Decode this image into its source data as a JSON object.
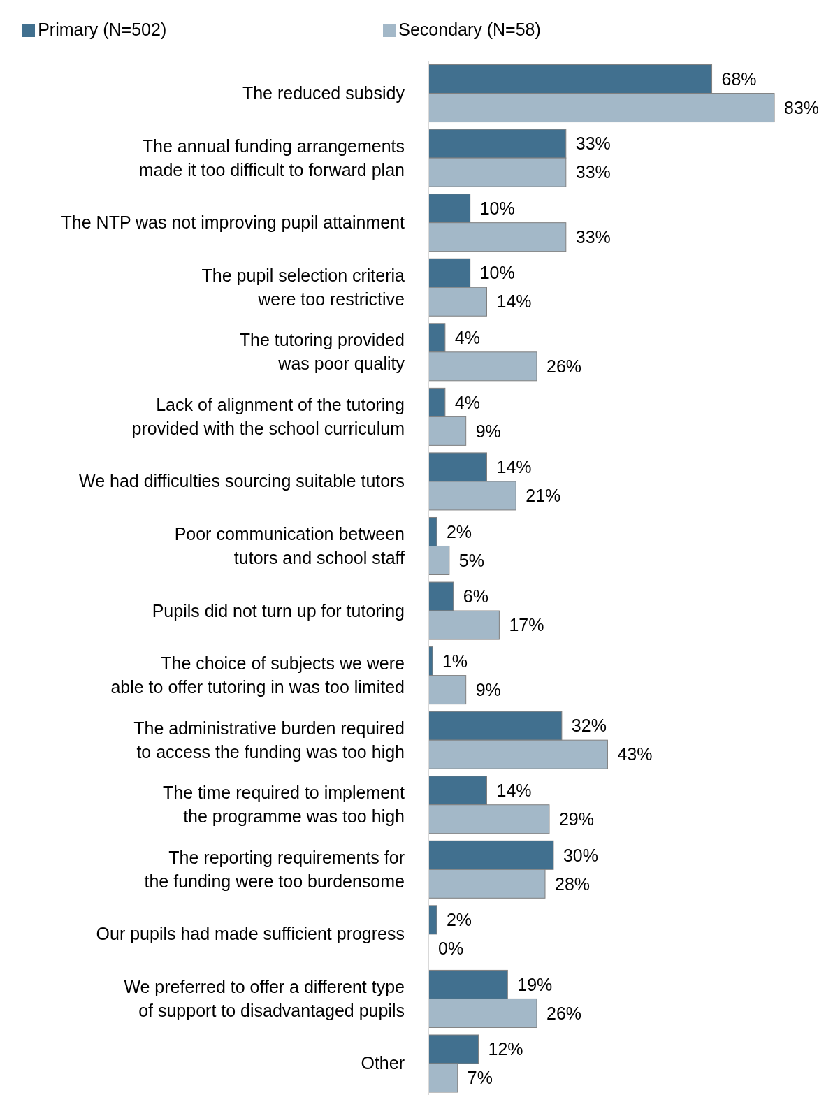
{
  "chart_data": {
    "type": "bar",
    "orientation": "horizontal",
    "legend": "top",
    "categories": [
      "The reduced subsidy",
      "The annual funding arrangements\nmade it too difficult to forward plan",
      "The NTP was not improving pupil attainment",
      "The pupil selection criteria\nwere too restrictive",
      "The tutoring provided\nwas poor quality",
      "Lack of alignment of the tutoring\nprovided with the school curriculum",
      "We had difficulties sourcing suitable tutors",
      "Poor communication between\ntutors and school staff",
      "Pupils did not turn up for tutoring",
      "The choice of subjects we were\nable to offer tutoring in was too limited",
      "The administrative burden required\nto access the funding was too high",
      "The time required to implement\nthe programme was too high",
      "The reporting requirements for\nthe funding were too burdensome",
      "Our pupils had made sufficient progress",
      "We preferred to offer a different type\nof support to disadvantaged pupils",
      "Other"
    ],
    "series": [
      {
        "name": "Primary (N=502)",
        "color": "#41708f",
        "values": [
          68,
          33,
          10,
          10,
          4,
          4,
          14,
          2,
          6,
          1,
          32,
          14,
          30,
          2,
          19,
          12
        ],
        "value_labels": [
          "68%",
          "33%",
          "10%",
          "10%",
          "4%",
          "4%",
          "14%",
          "2%",
          "6%",
          "1%",
          "32%",
          "14%",
          "30%",
          "2%",
          "19%",
          "12%"
        ]
      },
      {
        "name": "Secondary (N=58)",
        "color": "#a3b8c8",
        "values": [
          83,
          33,
          33,
          14,
          26,
          9,
          21,
          5,
          17,
          9,
          43,
          29,
          28,
          0,
          26,
          7
        ],
        "value_labels": [
          "83%",
          "33%",
          "33%",
          "14%",
          "26%",
          "9%",
          "21%",
          "5%",
          "17%",
          "9%",
          "43%",
          "29%",
          "28%",
          "0%",
          "26%",
          "7%"
        ]
      }
    ]
  }
}
